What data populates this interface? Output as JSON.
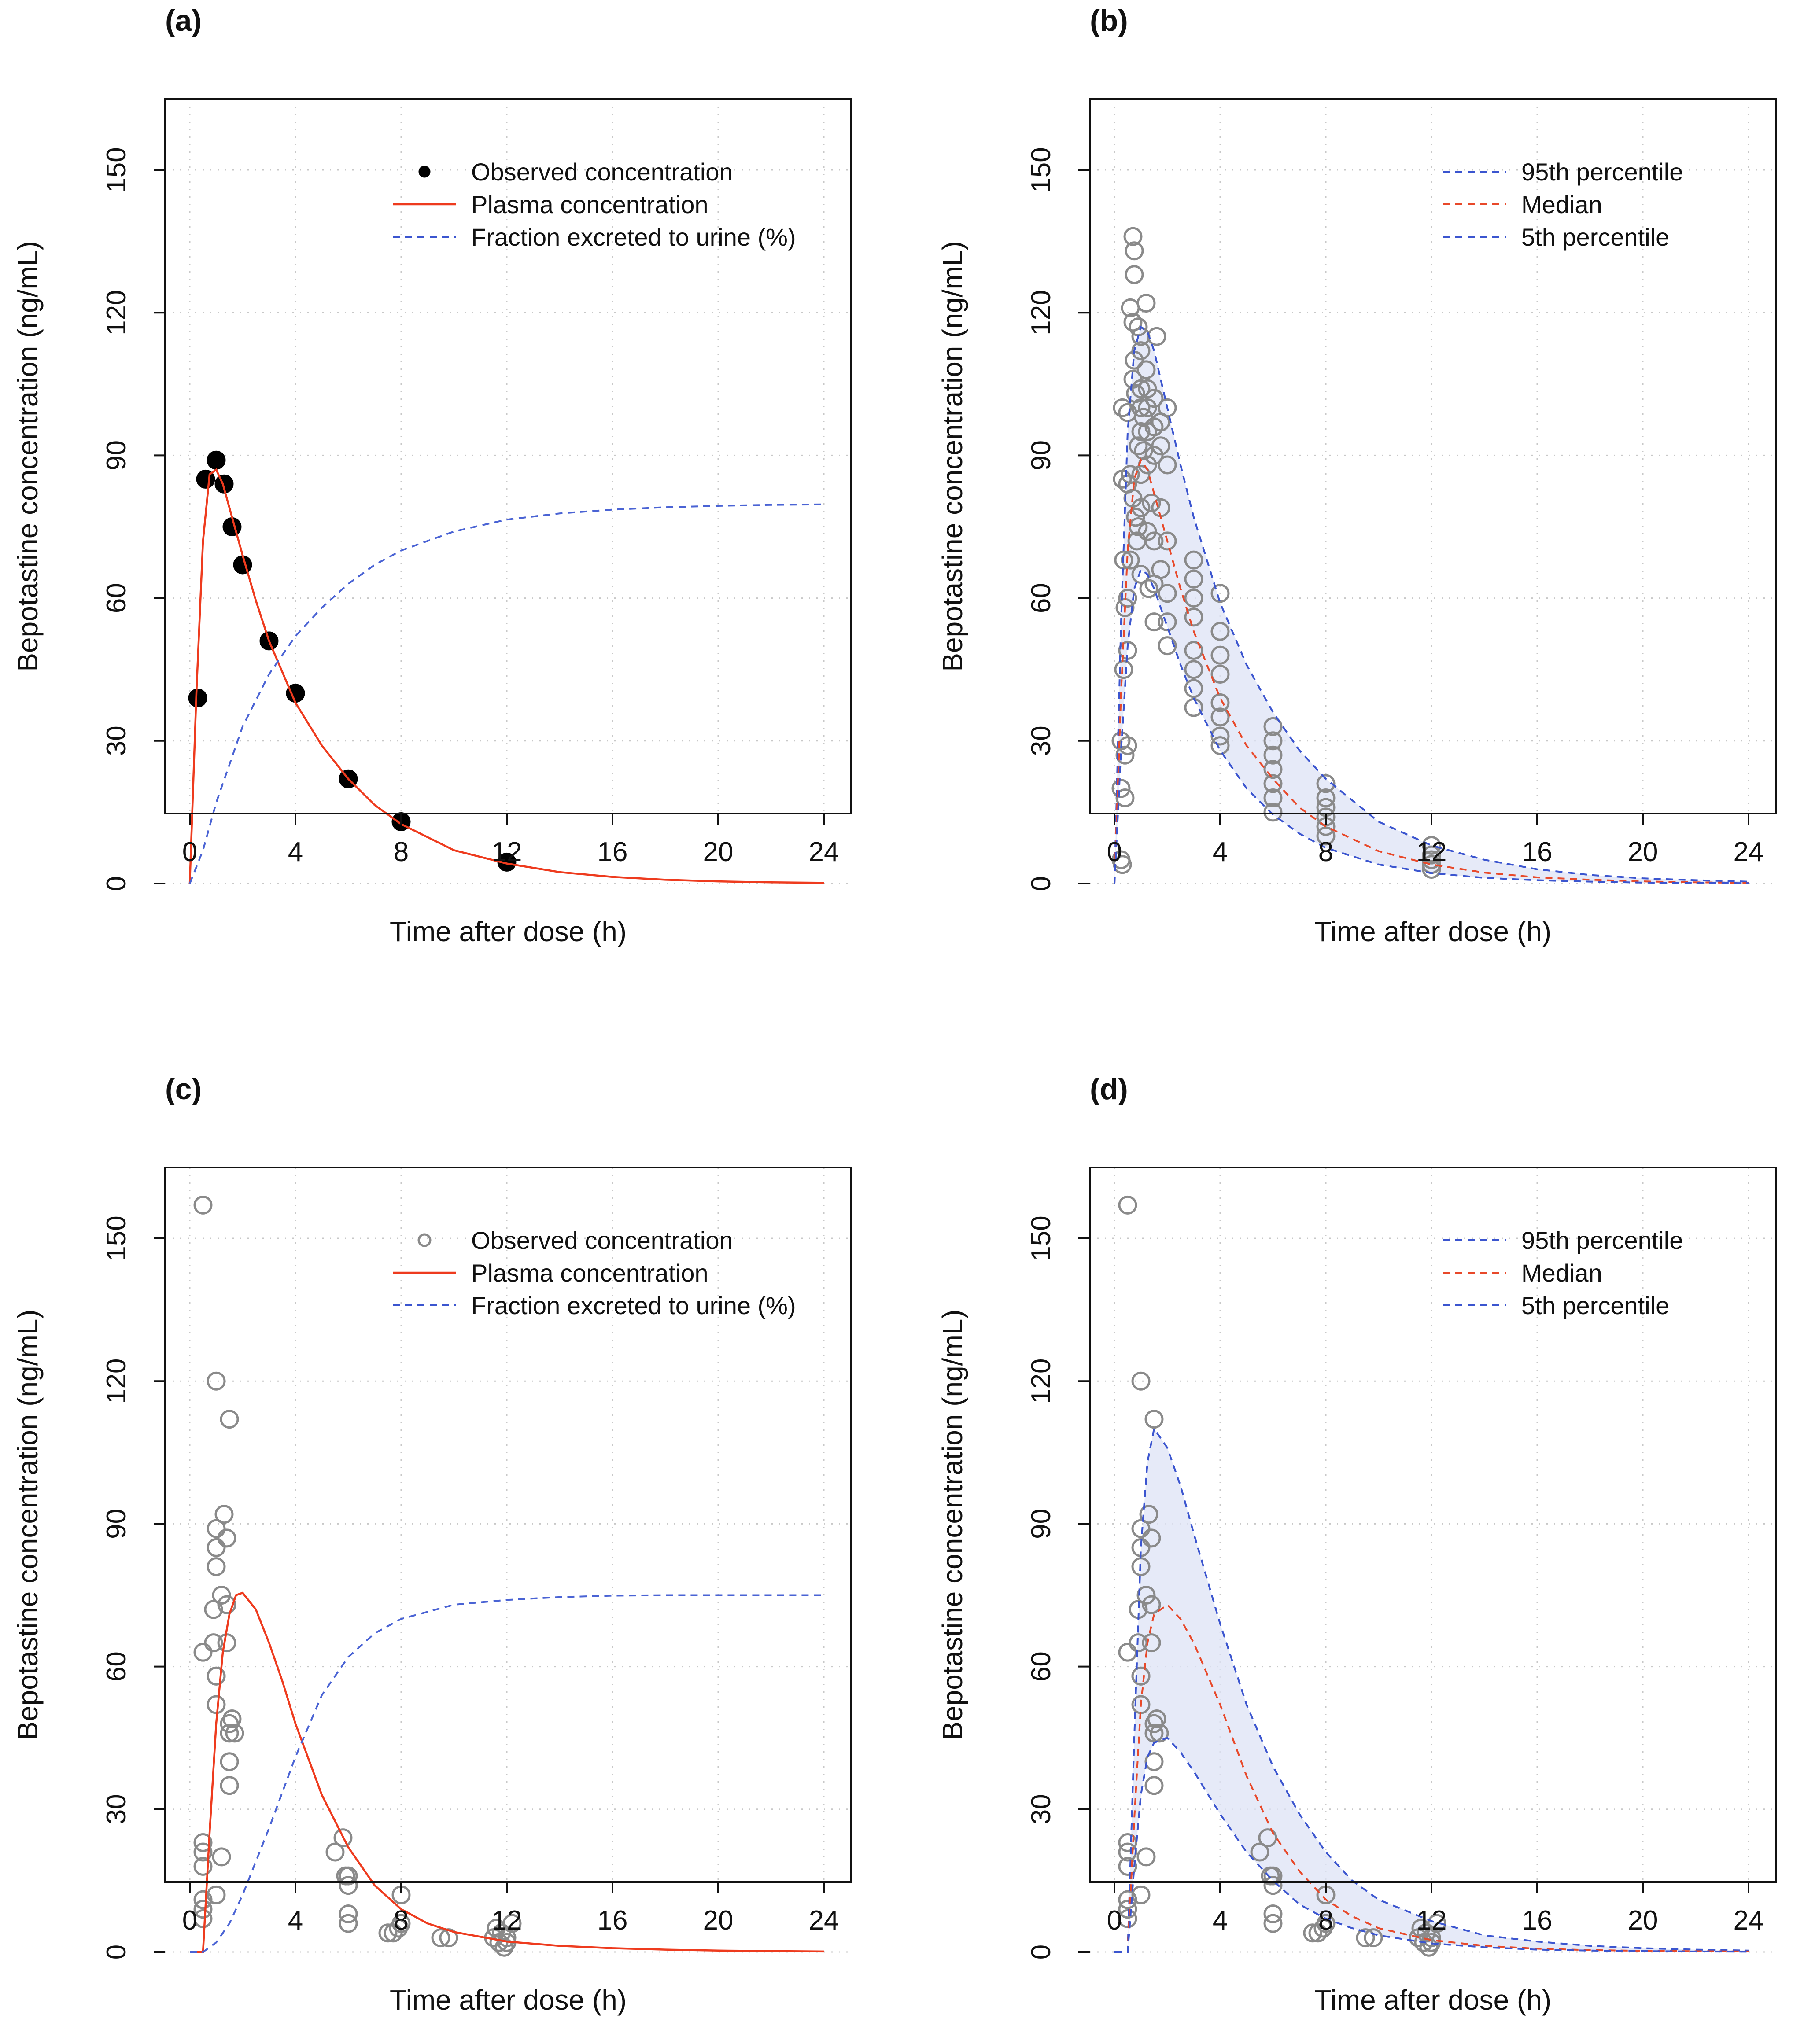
{
  "figure": {
    "panel_letters": [
      "(a)",
      "(b)",
      "(c)",
      "(d)"
    ]
  },
  "colors": {
    "plasma": "#ee3b1e",
    "urine": "#4a63d4",
    "percentile": "#3b55cf",
    "median": "#e8492a",
    "band": "#dde3f6",
    "open_marker": "#8a8a8a"
  },
  "chart_data": [
    {
      "id": "a",
      "type": "line",
      "panel_label": "(a)",
      "xlabel": "Time after dose (h)",
      "ylabel": "Bepotastine concentration (ng/mL)",
      "xlim": [
        0,
        24
      ],
      "ylim": [
        0,
        160
      ],
      "xticks": [
        0,
        4,
        8,
        12,
        16,
        20,
        24
      ],
      "yticks": [
        0,
        30,
        60,
        90,
        120,
        150
      ],
      "grid": true,
      "legend_position": "top-right",
      "legend": [
        {
          "label": "Observed concentration",
          "style": "filled-point"
        },
        {
          "label": "Plasma concentration",
          "style": "solid-red"
        },
        {
          "label": "Fraction excreted to urine (%)",
          "style": "dashed-blue"
        }
      ],
      "observed": {
        "x": [
          0.3,
          0.6,
          1.0,
          1.3,
          1.6,
          2.0,
          3.0,
          4.0,
          6.0,
          8.0,
          12.0
        ],
        "y": [
          39,
          85,
          89,
          84,
          75,
          67,
          51,
          40,
          22,
          13,
          4.5
        ]
      },
      "series": [
        {
          "name": "Plasma concentration",
          "x": [
            0,
            0.25,
            0.5,
            0.75,
            1.0,
            1.25,
            1.5,
            2,
            2.5,
            3,
            4,
            5,
            6,
            7,
            8,
            10,
            12,
            14,
            16,
            18,
            20,
            22,
            24
          ],
          "y": [
            0,
            40,
            72,
            86,
            87,
            84,
            79,
            69,
            59.5,
            51,
            38,
            29,
            22,
            16.5,
            12.5,
            7,
            4.2,
            2.4,
            1.4,
            0.8,
            0.45,
            0.25,
            0.15
          ]
        },
        {
          "name": "Fraction excreted to urine (%)",
          "x": [
            0,
            0.5,
            1,
            2,
            3,
            4,
            5,
            6,
            7,
            8,
            10,
            12,
            14,
            16,
            18,
            20,
            22,
            24
          ],
          "y": [
            0,
            7,
            17,
            33,
            44,
            52,
            58,
            63,
            67,
            70,
            74,
            76.5,
            77.8,
            78.6,
            79.1,
            79.4,
            79.6,
            79.7
          ]
        }
      ]
    },
    {
      "id": "b",
      "type": "line",
      "panel_label": "(b)",
      "xlabel": "Time after dose (h)",
      "ylabel": "Bepotastine concentration (ng/mL)",
      "xlim": [
        0,
        24
      ],
      "ylim": [
        0,
        160
      ],
      "xticks": [
        0,
        4,
        8,
        12,
        16,
        20,
        24
      ],
      "yticks": [
        0,
        30,
        60,
        90,
        120,
        150
      ],
      "grid": true,
      "legend_position": "top-right",
      "legend": [
        {
          "label": "95th percentile",
          "style": "dashed-blue"
        },
        {
          "label": "Median",
          "style": "dashed-red"
        },
        {
          "label": "5th percentile",
          "style": "dashed-blue"
        }
      ],
      "observed": {
        "x": [
          0.25,
          0.25,
          0.25,
          0.3,
          0.3,
          0.3,
          0.35,
          0.35,
          0.4,
          0.4,
          0.4,
          0.5,
          0.5,
          0.5,
          0.5,
          0.5,
          0.6,
          0.6,
          0.6,
          0.7,
          0.7,
          0.7,
          0.7,
          0.75,
          0.75,
          0.75,
          0.8,
          0.8,
          0.85,
          0.9,
          0.9,
          0.9,
          1.0,
          1.0,
          1.0,
          1.0,
          1.0,
          1.0,
          1.0,
          1.0,
          1.1,
          1.1,
          1.2,
          1.2,
          1.25,
          1.25,
          1.25,
          1.25,
          1.25,
          1.3,
          1.4,
          1.5,
          1.5,
          1.5,
          1.5,
          1.5,
          1.5,
          1.6,
          1.75,
          1.75,
          1.75,
          1.75,
          2.0,
          2.0,
          2.0,
          2.0,
          2.0,
          2.0,
          3.0,
          3.0,
          3.0,
          3.0,
          3.0,
          3.0,
          3.0,
          3.0,
          4.0,
          4.0,
          4.0,
          4.0,
          4.0,
          4.0,
          4.0,
          4.0,
          6.0,
          6.0,
          6.0,
          6.0,
          6.0,
          6.0,
          6.0,
          8.0,
          8.0,
          8.0,
          8.0,
          8.0,
          8.0,
          12.0,
          12.0,
          12.0,
          12.0,
          12.0
        ],
        "y": [
          5,
          20,
          30,
          100,
          85,
          4,
          45,
          68,
          18,
          58,
          27,
          99,
          84,
          60,
          49,
          29,
          121,
          86,
          68,
          136,
          118,
          106,
          81,
          133,
          128,
          110,
          103,
          77,
          72,
          117,
          92,
          75,
          115,
          112,
          104,
          100,
          95,
          86,
          79,
          65,
          98,
          91,
          122,
          108,
          104,
          100,
          95,
          88,
          74,
          62,
          80,
          102,
          96,
          90,
          72,
          63,
          55,
          115,
          97,
          92,
          79,
          66,
          100,
          88,
          72,
          61,
          55,
          50,
          68,
          64,
          60,
          56,
          49,
          45,
          41,
          37,
          61,
          53,
          48,
          44,
          38,
          35,
          31,
          29,
          33,
          30,
          27,
          24,
          21,
          18,
          15,
          21,
          18,
          16,
          14,
          12,
          10,
          8,
          6,
          5,
          4,
          3
        ]
      },
      "series": [
        {
          "name": "95th percentile",
          "x": [
            0,
            0.25,
            0.5,
            0.75,
            1.0,
            1.25,
            1.5,
            2,
            2.5,
            3,
            4,
            5,
            6,
            7,
            8,
            10,
            12,
            14,
            16,
            18,
            20,
            22,
            24
          ],
          "y": [
            0,
            55,
            95,
            112,
            117,
            116,
            112,
            100,
            88,
            77,
            59,
            46,
            36,
            28,
            22,
            13,
            8,
            5,
            3,
            1.8,
            1.1,
            0.7,
            0.4
          ]
        },
        {
          "name": "Median",
          "x": [
            0,
            0.25,
            0.5,
            0.75,
            1.0,
            1.25,
            1.5,
            2,
            2.5,
            3,
            4,
            5,
            6,
            7,
            8,
            10,
            12,
            14,
            16,
            18,
            20,
            22,
            24
          ],
          "y": [
            0,
            40,
            70,
            85,
            89,
            87,
            82,
            72,
            62,
            53,
            39,
            29,
            22,
            16,
            12,
            6.8,
            4,
            2.3,
            1.3,
            0.8,
            0.45,
            0.25,
            0.15
          ]
        },
        {
          "name": "5th percentile",
          "x": [
            0,
            0.25,
            0.5,
            0.75,
            1.0,
            1.25,
            1.5,
            2,
            2.5,
            3,
            4,
            5,
            6,
            7,
            8,
            10,
            12,
            14,
            16,
            18,
            20,
            22,
            24
          ],
          "y": [
            0,
            28,
            50,
            62,
            66,
            65,
            62,
            54,
            46,
            39,
            28,
            20,
            14.5,
            10.5,
            7.5,
            4,
            2.2,
            1.2,
            0.7,
            0.4,
            0.2,
            0.12,
            0.07
          ]
        }
      ]
    },
    {
      "id": "c",
      "type": "line",
      "panel_label": "(c)",
      "xlabel": "Time after dose (h)",
      "ylabel": "Bepotastine concentration (ng/mL)",
      "xlim": [
        0,
        24
      ],
      "ylim": [
        0,
        160
      ],
      "xticks": [
        0,
        4,
        8,
        12,
        16,
        20,
        24
      ],
      "yticks": [
        0,
        30,
        60,
        90,
        120,
        150
      ],
      "grid": true,
      "legend_position": "top-right",
      "legend": [
        {
          "label": "Observed concentration",
          "style": "open-point"
        },
        {
          "label": "Plasma concentration",
          "style": "solid-red"
        },
        {
          "label": "Fraction excreted to urine (%)",
          "style": "dashed-blue"
        }
      ],
      "observed": {
        "x": [
          0.5,
          0.5,
          0.5,
          0.5,
          0.5,
          0.5,
          0.5,
          0.5,
          0.9,
          0.9,
          1.0,
          1.0,
          1.0,
          1.0,
          1.0,
          1.0,
          1.0,
          1.0,
          1.2,
          1.2,
          1.3,
          1.4,
          1.4,
          1.4,
          1.5,
          1.5,
          1.5,
          1.5,
          1.5,
          1.6,
          1.7,
          5.5,
          5.8,
          5.9,
          6.0,
          6.0,
          6.0,
          6.0,
          7.5,
          7.7,
          7.9,
          8.0,
          8.0,
          9.5,
          9.8,
          11.5,
          11.6,
          11.7,
          11.8,
          11.9,
          12.0,
          12.0,
          12.2
        ],
        "y": [
          157,
          63,
          23,
          21,
          18,
          11,
          9,
          7,
          72,
          65,
          120,
          89,
          85,
          81,
          58,
          58,
          52,
          12,
          75,
          20,
          92,
          87,
          73,
          65,
          112,
          48,
          46,
          40,
          35,
          49,
          46,
          21,
          24,
          16,
          16,
          14,
          8,
          6,
          4,
          4,
          5,
          6,
          12,
          3,
          3,
          3,
          5,
          2,
          4,
          1,
          3,
          2,
          6
        ]
      },
      "series": [
        {
          "name": "Plasma concentration",
          "x": [
            0,
            0.5,
            0.75,
            1.0,
            1.25,
            1.5,
            1.75,
            2.0,
            2.5,
            3,
            3.5,
            4,
            5,
            6,
            7,
            8,
            9,
            10,
            12,
            14,
            16,
            18,
            20,
            22,
            24
          ],
          "y": [
            0,
            0,
            25,
            48,
            63,
            71,
            75,
            75.5,
            72,
            65,
            57,
            48,
            33,
            22,
            14,
            9,
            6,
            4.2,
            2.2,
            1.3,
            0.8,
            0.5,
            0.3,
            0.2,
            0.1
          ]
        },
        {
          "name": "Fraction excreted to urine (%)",
          "x": [
            0,
            0.5,
            1,
            1.5,
            2,
            3,
            4,
            5,
            6,
            7,
            8,
            10,
            12,
            14,
            16,
            18,
            20,
            22,
            24
          ],
          "y": [
            0,
            0,
            2,
            6,
            12,
            26,
            41,
            54,
            62,
            67,
            70,
            73,
            74,
            74.6,
            74.9,
            75,
            75,
            75,
            75
          ]
        }
      ]
    },
    {
      "id": "d",
      "type": "line",
      "panel_label": "(d)",
      "xlabel": "Time after dose (h)",
      "ylabel": "Bepotastine concentration (ng/mL)",
      "xlim": [
        0,
        24
      ],
      "ylim": [
        0,
        160
      ],
      "xticks": [
        0,
        4,
        8,
        12,
        16,
        20,
        24
      ],
      "yticks": [
        0,
        30,
        60,
        90,
        120,
        150
      ],
      "grid": true,
      "legend_position": "top-right",
      "legend": [
        {
          "label": "95th percentile",
          "style": "dashed-blue"
        },
        {
          "label": "Median",
          "style": "dashed-red"
        },
        {
          "label": "5th percentile",
          "style": "dashed-blue"
        }
      ],
      "observed": {
        "x": [
          0.5,
          0.5,
          0.5,
          0.5,
          0.5,
          0.5,
          0.5,
          0.5,
          0.9,
          0.9,
          1.0,
          1.0,
          1.0,
          1.0,
          1.0,
          1.0,
          1.0,
          1.0,
          1.2,
          1.2,
          1.3,
          1.4,
          1.4,
          1.4,
          1.5,
          1.5,
          1.5,
          1.5,
          1.5,
          1.6,
          1.7,
          5.5,
          5.8,
          5.9,
          6.0,
          6.0,
          6.0,
          6.0,
          7.5,
          7.7,
          7.9,
          8.0,
          8.0,
          9.5,
          9.8,
          11.5,
          11.6,
          11.7,
          11.8,
          11.9,
          12.0,
          12.0,
          12.2
        ],
        "y": [
          157,
          63,
          23,
          21,
          18,
          11,
          9,
          7,
          72,
          65,
          120,
          89,
          85,
          81,
          58,
          58,
          52,
          12,
          75,
          20,
          92,
          87,
          73,
          65,
          112,
          48,
          46,
          40,
          35,
          49,
          46,
          21,
          24,
          16,
          16,
          14,
          8,
          6,
          4,
          4,
          5,
          6,
          12,
          3,
          3,
          3,
          5,
          2,
          4,
          1,
          3,
          2,
          6
        ]
      },
      "series": [
        {
          "name": "95th percentile",
          "x": [
            0,
            0.5,
            0.75,
            1.0,
            1.25,
            1.5,
            2.0,
            2.5,
            3,
            4,
            5,
            6,
            7,
            8,
            9,
            10,
            12,
            14,
            16,
            18,
            20,
            22,
            24
          ],
          "y": [
            0,
            0,
            45,
            85,
            103,
            110,
            106,
            98,
            88,
            69,
            52,
            39,
            29,
            21,
            15,
            11,
            6.5,
            3.5,
            2.2,
            1.3,
            0.8,
            0.5,
            0.3
          ]
        },
        {
          "name": "Median",
          "x": [
            0,
            0.5,
            0.75,
            1.0,
            1.25,
            1.5,
            2.0,
            2.5,
            3,
            4,
            5,
            6,
            7,
            8,
            9,
            10,
            12,
            14,
            16,
            18,
            20,
            22,
            24
          ],
          "y": [
            0,
            0,
            28,
            52,
            65,
            71,
            73,
            70,
            65,
            52,
            37,
            25,
            17,
            11,
            7.5,
            5,
            2.5,
            1.3,
            0.7,
            0.4,
            0.25,
            0.15,
            0.1
          ]
        },
        {
          "name": "5th percentile",
          "x": [
            0,
            0.5,
            0.75,
            1.0,
            1.25,
            1.5,
            2.0,
            2.5,
            3,
            4,
            5,
            6,
            7,
            8,
            9,
            10,
            12,
            14,
            16,
            18,
            20,
            22,
            24
          ],
          "y": [
            0,
            0,
            18,
            33,
            41,
            44,
            45,
            42,
            38,
            29,
            21,
            15,
            10,
            7,
            5,
            3.5,
            1.8,
            1.0,
            0.5,
            0.3,
            0.18,
            0.1,
            0.06
          ]
        }
      ]
    }
  ]
}
